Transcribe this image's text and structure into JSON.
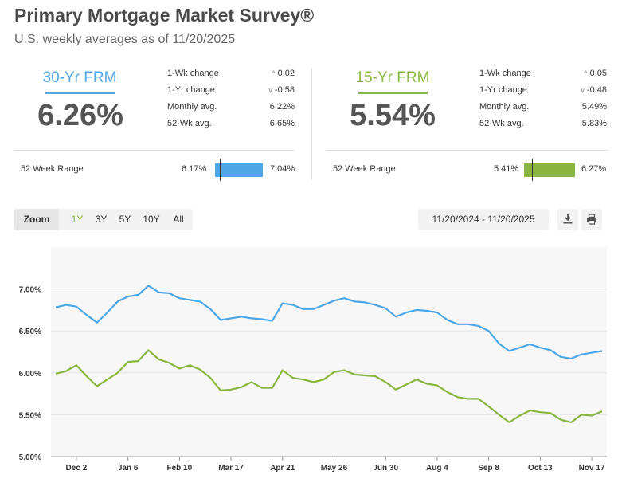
{
  "header": {
    "title": "Primary Mortgage Market Survey®",
    "subtitle": "U.S. weekly averages as of 11/20/2025"
  },
  "colors": {
    "frm30": "#4da6e6",
    "frm15": "#8ab63f"
  },
  "cards": [
    {
      "name": "30-Yr FRM",
      "rate": "6.26%",
      "wk_change_label": "1-Wk change",
      "wk_change_icon": "chevron-up-icon",
      "wk_change": "0.02",
      "yr_change_label": "1-Yr change",
      "yr_change_icon": "chevron-down-icon",
      "yr_change": "-0.58",
      "monthly_label": "Monthly avg.",
      "monthly": "6.22%",
      "wk52_label": "52-Wk avg.",
      "wk52": "6.65%",
      "range_label": "52 Week Range",
      "range_low": "6.17%",
      "range_high": "7.04%",
      "range_position": 0.1
    },
    {
      "name": "15-Yr FRM",
      "rate": "5.54%",
      "wk_change_label": "1-Wk change",
      "wk_change_icon": "chevron-up-icon",
      "wk_change": "0.05",
      "yr_change_label": "1-Yr change",
      "yr_change_icon": "chevron-down-icon",
      "yr_change": "-0.48",
      "monthly_label": "Monthly avg.",
      "monthly": "5.49%",
      "wk52_label": "52-Wk avg.",
      "wk52": "5.83%",
      "range_label": "52 Week Range",
      "range_low": "5.41%",
      "range_high": "6.27%",
      "range_position": 0.15
    }
  ],
  "toolbar": {
    "zoom_label": "Zoom",
    "buttons": [
      "1Y",
      "3Y",
      "5Y",
      "10Y",
      "All"
    ],
    "active": "1Y",
    "date_range": "11/20/2024 - 11/20/2025",
    "download_icon": "download-icon",
    "print_icon": "print-icon"
  },
  "chart_data": {
    "type": "line",
    "ylim": [
      5.0,
      7.5
    ],
    "ytick_values": [
      5.0,
      5.5,
      6.0,
      6.5,
      7.0
    ],
    "ytick_labels": [
      "5.00%",
      "5.50%",
      "6.00%",
      "6.50%",
      "7.00%"
    ],
    "xtick_labels": [
      "Dec 2",
      "Jan 6",
      "Feb 10",
      "Mar 17",
      "Apr 21",
      "May 26",
      "Jun 30",
      "Aug 4",
      "Sep 8",
      "Oct 13",
      "Nov 17"
    ],
    "xtick_positions": [
      2,
      7,
      12,
      17,
      22,
      27,
      32,
      37,
      42,
      47,
      52
    ],
    "grid": true,
    "legend": "none",
    "series": [
      {
        "name": "30-Yr FRM",
        "color": "#4da6e6",
        "values": [
          6.78,
          6.81,
          6.79,
          6.69,
          6.6,
          6.72,
          6.85,
          6.91,
          6.93,
          7.04,
          6.96,
          6.95,
          6.89,
          6.87,
          6.85,
          6.76,
          6.63,
          6.65,
          6.67,
          6.65,
          6.64,
          6.62,
          6.83,
          6.81,
          6.76,
          6.76,
          6.81,
          6.86,
          6.89,
          6.85,
          6.84,
          6.81,
          6.77,
          6.67,
          6.72,
          6.75,
          6.74,
          6.72,
          6.63,
          6.58,
          6.58,
          6.56,
          6.5,
          6.35,
          6.26,
          6.3,
          6.34,
          6.3,
          6.27,
          6.19,
          6.17,
          6.22,
          6.24,
          6.26
        ]
      },
      {
        "name": "15-Yr FRM",
        "color": "#8ab63f",
        "values": [
          5.99,
          6.02,
          6.09,
          5.96,
          5.84,
          5.92,
          6.0,
          6.13,
          6.14,
          6.27,
          6.16,
          6.12,
          6.05,
          6.09,
          6.04,
          5.94,
          5.79,
          5.8,
          5.83,
          5.89,
          5.82,
          5.82,
          6.03,
          5.94,
          5.92,
          5.89,
          5.92,
          6.01,
          6.03,
          5.98,
          5.97,
          5.96,
          5.89,
          5.8,
          5.86,
          5.92,
          5.87,
          5.85,
          5.77,
          5.71,
          5.69,
          5.69,
          5.6,
          5.5,
          5.41,
          5.49,
          5.55,
          5.53,
          5.52,
          5.44,
          5.41,
          5.5,
          5.49,
          5.54
        ]
      }
    ]
  }
}
